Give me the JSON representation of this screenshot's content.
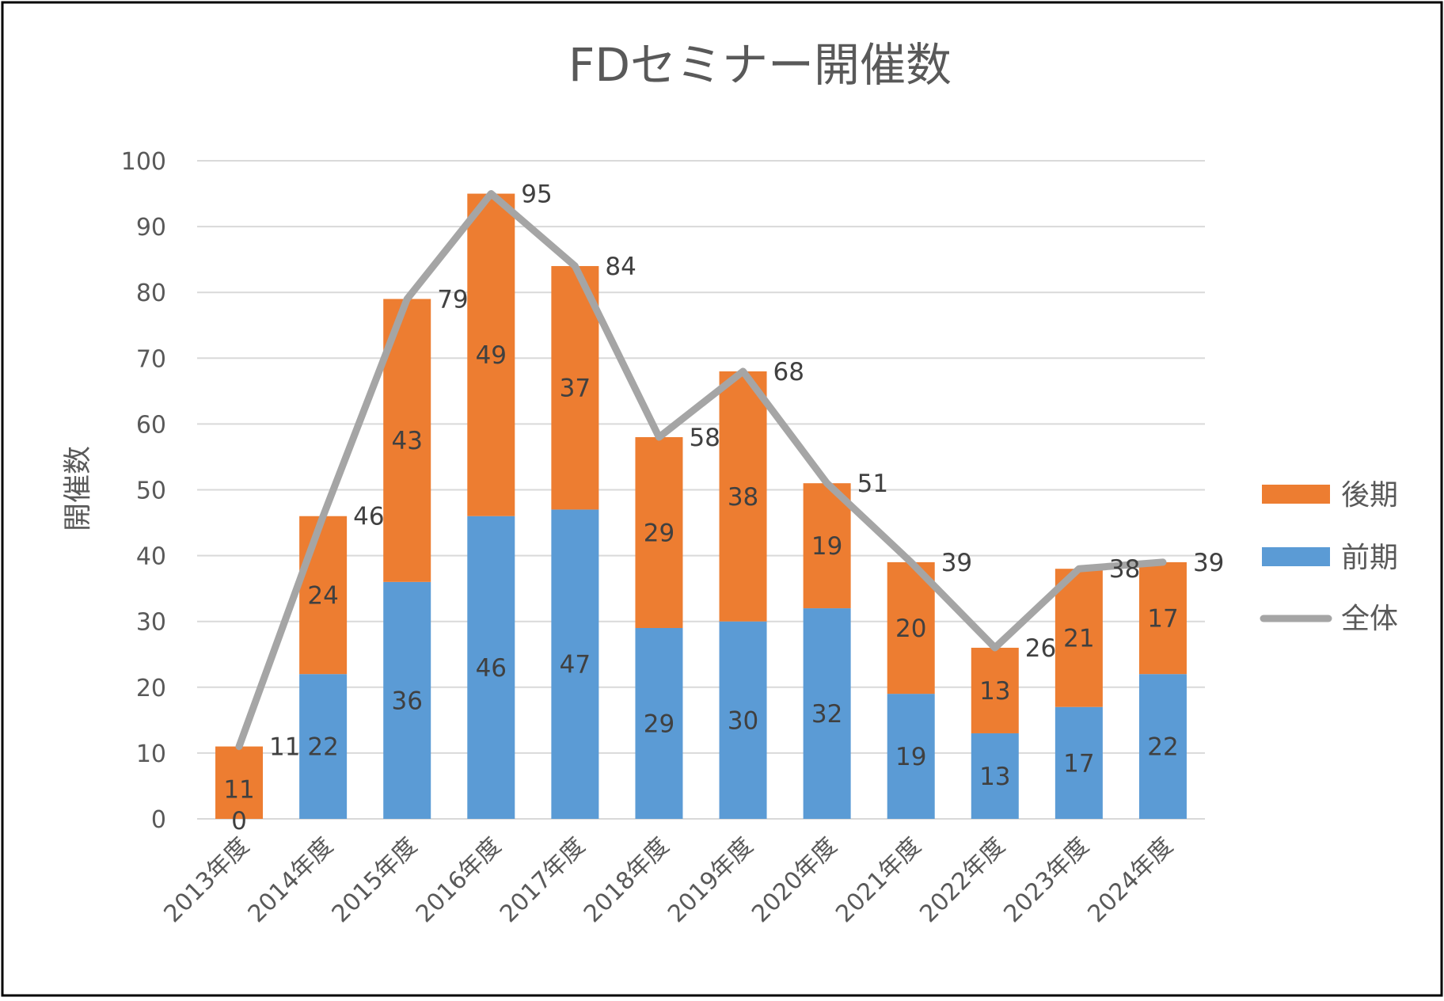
{
  "chart_data": {
    "type": "bar",
    "title": "FDセミナー開催数",
    "xlabel": "",
    "ylabel": "開催数",
    "ylim": [
      0,
      100
    ],
    "yticks": [
      0,
      10,
      20,
      30,
      40,
      50,
      60,
      70,
      80,
      90,
      100
    ],
    "grid": true,
    "legend_position": "right",
    "categories": [
      "2013年度",
      "2014年度",
      "2015年度",
      "2016年度",
      "2017年度",
      "2018年度",
      "2019年度",
      "2020年度",
      "2021年度",
      "2022年度",
      "2023年度",
      "2024年度"
    ],
    "series": [
      {
        "name": "前期",
        "kind": "bar",
        "stacked": true,
        "color": "#5b9bd5",
        "values": [
          0,
          22,
          36,
          46,
          47,
          29,
          30,
          32,
          19,
          13,
          17,
          22
        ]
      },
      {
        "name": "後期",
        "kind": "bar",
        "stacked": true,
        "color": "#ed7d31",
        "values": [
          11,
          24,
          43,
          49,
          37,
          29,
          38,
          19,
          20,
          13,
          21,
          17
        ]
      },
      {
        "name": "全体",
        "kind": "line",
        "color": "#a5a5a5",
        "values": [
          11,
          46,
          79,
          95,
          84,
          58,
          68,
          51,
          39,
          26,
          38,
          39
        ]
      }
    ]
  }
}
